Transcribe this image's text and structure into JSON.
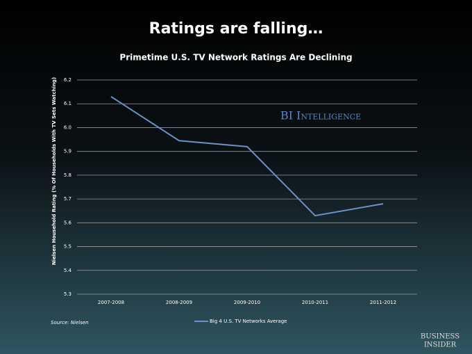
{
  "chart_data": {
    "type": "line",
    "title": "Ratings are falling…",
    "subtitle": "Primetime U.S. TV Network Ratings Are Declining",
    "y_label": "Nielsen Household Rating (% Of Households With TV Sets Watching)",
    "watermark": "BI Intelligence",
    "source": "Source: Nielsen",
    "brand": [
      "BUSINESS",
      "INSIDER"
    ],
    "categories": [
      "2007-2008",
      "2008-2009",
      "2009-2010",
      "2010-2011",
      "2011-2012"
    ],
    "series": [
      {
        "name": "Big 4 U.S. TV Networks Average",
        "color": "#6f8fca",
        "values": [
          6.13,
          5.945,
          5.92,
          5.63,
          5.68
        ]
      }
    ],
    "ylim": [
      5.3,
      6.2
    ],
    "yticks": [
      {
        "value": 5.3,
        "label": "5.3"
      },
      {
        "value": 5.4,
        "label": "5.4"
      },
      {
        "value": 5.5,
        "label": "5.5"
      },
      {
        "value": 5.6,
        "label": "5.6"
      },
      {
        "value": 5.7,
        "label": "5.7"
      },
      {
        "value": 5.8,
        "label": "5.8"
      },
      {
        "value": 5.9,
        "label": "5.9"
      },
      {
        "value": 6,
        "label": "6.0"
      },
      {
        "value": 6.1,
        "label": "6.1"
      },
      {
        "value": 6.2,
        "label": "6.2"
      }
    ],
    "grid": true,
    "legend": "bottom"
  }
}
